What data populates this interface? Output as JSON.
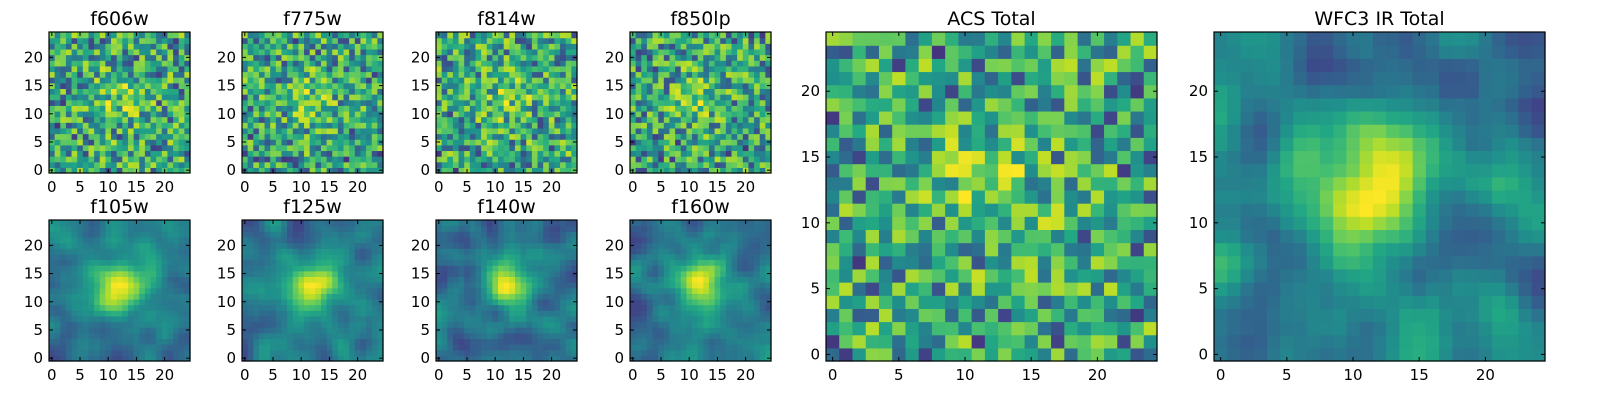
{
  "chart_data": {
    "type": "heatmap",
    "colormap": "viridis",
    "grid_size": 25,
    "panels": [
      {
        "name": "f606w",
        "title": "f606w",
        "seed": 11,
        "mode": "noise",
        "xticks": [
          0,
          5,
          10,
          15,
          20
        ],
        "yticks": [
          0,
          5,
          10,
          15,
          20
        ],
        "xlim": [
          -0.5,
          24.5
        ],
        "ylim": [
          -0.5,
          24.5
        ]
      },
      {
        "name": "f775w",
        "title": "f775w",
        "seed": 23,
        "mode": "noise",
        "xticks": [
          0,
          5,
          10,
          15,
          20
        ],
        "yticks": [
          0,
          5,
          10,
          15,
          20
        ],
        "xlim": [
          -0.5,
          24.5
        ],
        "ylim": [
          -0.5,
          24.5
        ]
      },
      {
        "name": "f814w",
        "title": "f814w",
        "seed": 37,
        "mode": "noise",
        "xticks": [
          0,
          5,
          10,
          15,
          20
        ],
        "yticks": [
          0,
          5,
          10,
          15,
          20
        ],
        "xlim": [
          -0.5,
          24.5
        ],
        "ylim": [
          -0.5,
          24.5
        ]
      },
      {
        "name": "f850lp",
        "title": "f850lp",
        "seed": 41,
        "mode": "noise",
        "xticks": [
          0,
          5,
          10,
          15,
          20
        ],
        "yticks": [
          0,
          5,
          10,
          15,
          20
        ],
        "xlim": [
          -0.5,
          24.5
        ],
        "ylim": [
          -0.5,
          24.5
        ]
      },
      {
        "name": "f105w",
        "title": "f105w",
        "seed": 53,
        "mode": "smooth",
        "xticks": [
          0,
          5,
          10,
          15,
          20
        ],
        "yticks": [
          0,
          5,
          10,
          15,
          20
        ],
        "xlim": [
          -0.5,
          24.5
        ],
        "ylim": [
          -0.5,
          24.5
        ]
      },
      {
        "name": "f125w",
        "title": "f125w",
        "seed": 67,
        "mode": "smooth",
        "xticks": [
          0,
          5,
          10,
          15,
          20
        ],
        "yticks": [
          0,
          5,
          10,
          15,
          20
        ],
        "xlim": [
          -0.5,
          24.5
        ],
        "ylim": [
          -0.5,
          24.5
        ]
      },
      {
        "name": "f140w",
        "title": "f140w",
        "seed": 79,
        "mode": "smooth",
        "xticks": [
          0,
          5,
          10,
          15,
          20
        ],
        "yticks": [
          0,
          5,
          10,
          15,
          20
        ],
        "xlim": [
          -0.5,
          24.5
        ],
        "ylim": [
          -0.5,
          24.5
        ]
      },
      {
        "name": "f160w",
        "title": "f160w",
        "seed": 83,
        "mode": "smooth",
        "xticks": [
          0,
          5,
          10,
          15,
          20
        ],
        "yticks": [
          0,
          5,
          10,
          15,
          20
        ],
        "xlim": [
          -0.5,
          24.5
        ],
        "ylim": [
          -0.5,
          24.5
        ]
      },
      {
        "name": "acs-total",
        "title": "ACS Total",
        "seed": 97,
        "mode": "noise",
        "xticks": [
          0,
          5,
          10,
          15,
          20
        ],
        "yticks": [
          0,
          5,
          10,
          15,
          20
        ],
        "xlim": [
          -0.5,
          24.5
        ],
        "ylim": [
          -0.5,
          24.5
        ]
      },
      {
        "name": "wfc3-ir-total",
        "title": "WFC3 IR Total",
        "seed": 101,
        "mode": "smooth",
        "xticks": [
          0,
          5,
          10,
          15,
          20
        ],
        "yticks": [
          0,
          5,
          10,
          15,
          20
        ],
        "xlim": [
          -0.5,
          24.5
        ],
        "ylim": [
          -0.5,
          24.5
        ]
      }
    ]
  }
}
